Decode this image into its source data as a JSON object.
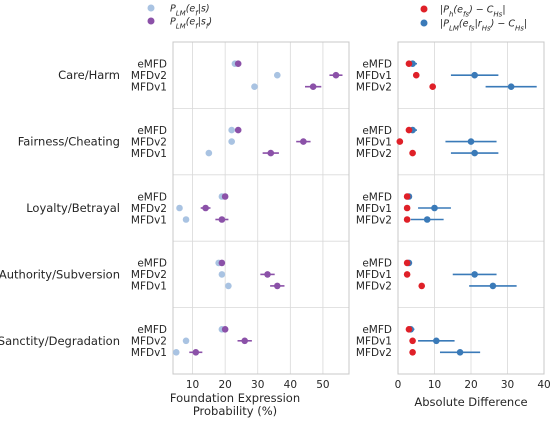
{
  "colors": {
    "light_blue": "#a9c3e2",
    "purple": "#8b51a8",
    "red": "#df2028",
    "steel_blue": "#3a7ab8",
    "grid": "#d9d9d9",
    "frame": "#c8c8c8"
  },
  "legend": {
    "left": [
      {
        "label": "P_LM(e_f|s)",
        "color_key": "light_blue"
      },
      {
        "label": "P_LM(e_f|s_f)",
        "color_key": "purple"
      }
    ],
    "right": [
      {
        "label": "|P_h(e_fs) − C_Hs|",
        "color_key": "red"
      },
      {
        "label": "|P_LM(e_fs|r_Hs) − C_Hs|",
        "color_key": "steel_blue"
      }
    ]
  },
  "chart_data": [
    {
      "type": "dot-errorbar",
      "panel": "left",
      "xlabel": "Foundation Expression\nProbability (%)",
      "xlim": [
        4,
        58
      ],
      "xticks": [
        10,
        20,
        30,
        40,
        50
      ],
      "grid": true,
      "groups": [
        {
          "name": "Care/Harm",
          "rows": [
            {
              "label": "eMFD",
              "base": 23,
              "cond": 24,
              "err": 0
            },
            {
              "label": "MFDv2",
              "base": 36,
              "cond": 54,
              "err": 2
            },
            {
              "label": "MFDv1",
              "base": 29,
              "cond": 47,
              "err": 2.5
            }
          ]
        },
        {
          "name": "Fairness/Cheating",
          "rows": [
            {
              "label": "eMFD",
              "base": 22,
              "cond": 24,
              "err": 0
            },
            {
              "label": "MFDv2",
              "base": 22,
              "cond": 44,
              "err": 2.2
            },
            {
              "label": "MFDv1",
              "base": 15,
              "cond": 34,
              "err": 2.5
            }
          ]
        },
        {
          "name": "Loyalty/Betrayal",
          "rows": [
            {
              "label": "eMFD",
              "base": 19,
              "cond": 20,
              "err": 0
            },
            {
              "label": "MFDv2",
              "base": 6,
              "cond": 14,
              "err": 1.5
            },
            {
              "label": "MFDv1",
              "base": 8,
              "cond": 19,
              "err": 2
            }
          ]
        },
        {
          "name": "Authority/Subversion",
          "rows": [
            {
              "label": "eMFD",
              "base": 18,
              "cond": 19,
              "err": 0
            },
            {
              "label": "MFDv2",
              "base": 19,
              "cond": 33,
              "err": 2.2
            },
            {
              "label": "MFDv1",
              "base": 21,
              "cond": 36,
              "err": 2.2
            }
          ]
        },
        {
          "name": "Sanctity/Degradation",
          "rows": [
            {
              "label": "eMFD",
              "base": 19,
              "cond": 20,
              "err": 0
            },
            {
              "label": "MFDv2",
              "base": 8,
              "cond": 26,
              "err": 2.2
            },
            {
              "label": "MFDv1",
              "base": 5,
              "cond": 11,
              "err": 2
            }
          ]
        }
      ]
    },
    {
      "type": "dot-errorbar",
      "panel": "right",
      "xlabel": "Absolute Difference",
      "xlim": [
        0,
        40
      ],
      "xticks": [
        0,
        10,
        20,
        30,
        40
      ],
      "grid": true,
      "groups": [
        {
          "name": "Care/Harm",
          "rows": [
            {
              "label": "eMFD",
              "red": 3,
              "blue": 4,
              "err": 1.2
            },
            {
              "label": "MFDv1",
              "red": 5,
              "blue": 21,
              "err": 6.5
            },
            {
              "label": "MFDv2",
              "red": 9.5,
              "blue": 31,
              "err": 7
            }
          ]
        },
        {
          "name": "Fairness/Cheating",
          "rows": [
            {
              "label": "eMFD",
              "red": 3,
              "blue": 4,
              "err": 1.2
            },
            {
              "label": "MFDv1",
              "red": 0.5,
              "blue": 20,
              "err": 7
            },
            {
              "label": "MFDv2",
              "red": 4,
              "blue": 21,
              "err": 6.5
            }
          ]
        },
        {
          "name": "Loyalty/Betrayal",
          "rows": [
            {
              "label": "eMFD",
              "red": 2.5,
              "blue": 3,
              "err": 0.8
            },
            {
              "label": "MFDv1",
              "red": 2.5,
              "blue": 10,
              "err": 4.5
            },
            {
              "label": "MFDv2",
              "red": 2.5,
              "blue": 8,
              "err": 4.5
            }
          ]
        },
        {
          "name": "Authority/Subversion",
          "rows": [
            {
              "label": "eMFD",
              "red": 2.5,
              "blue": 3,
              "err": 0.8
            },
            {
              "label": "MFDv1",
              "red": 2.5,
              "blue": 21,
              "err": 6
            },
            {
              "label": "MFDv2",
              "red": 6.5,
              "blue": 26,
              "err": 6.5
            }
          ]
        },
        {
          "name": "Sanctity/Degradation",
          "rows": [
            {
              "label": "eMFD",
              "red": 3,
              "blue": 3.5,
              "err": 1
            },
            {
              "label": "MFDv1",
              "red": 4,
              "blue": 10.5,
              "err": 5
            },
            {
              "label": "MFDv2",
              "red": 4,
              "blue": 17,
              "err": 5.5
            }
          ]
        }
      ]
    }
  ]
}
